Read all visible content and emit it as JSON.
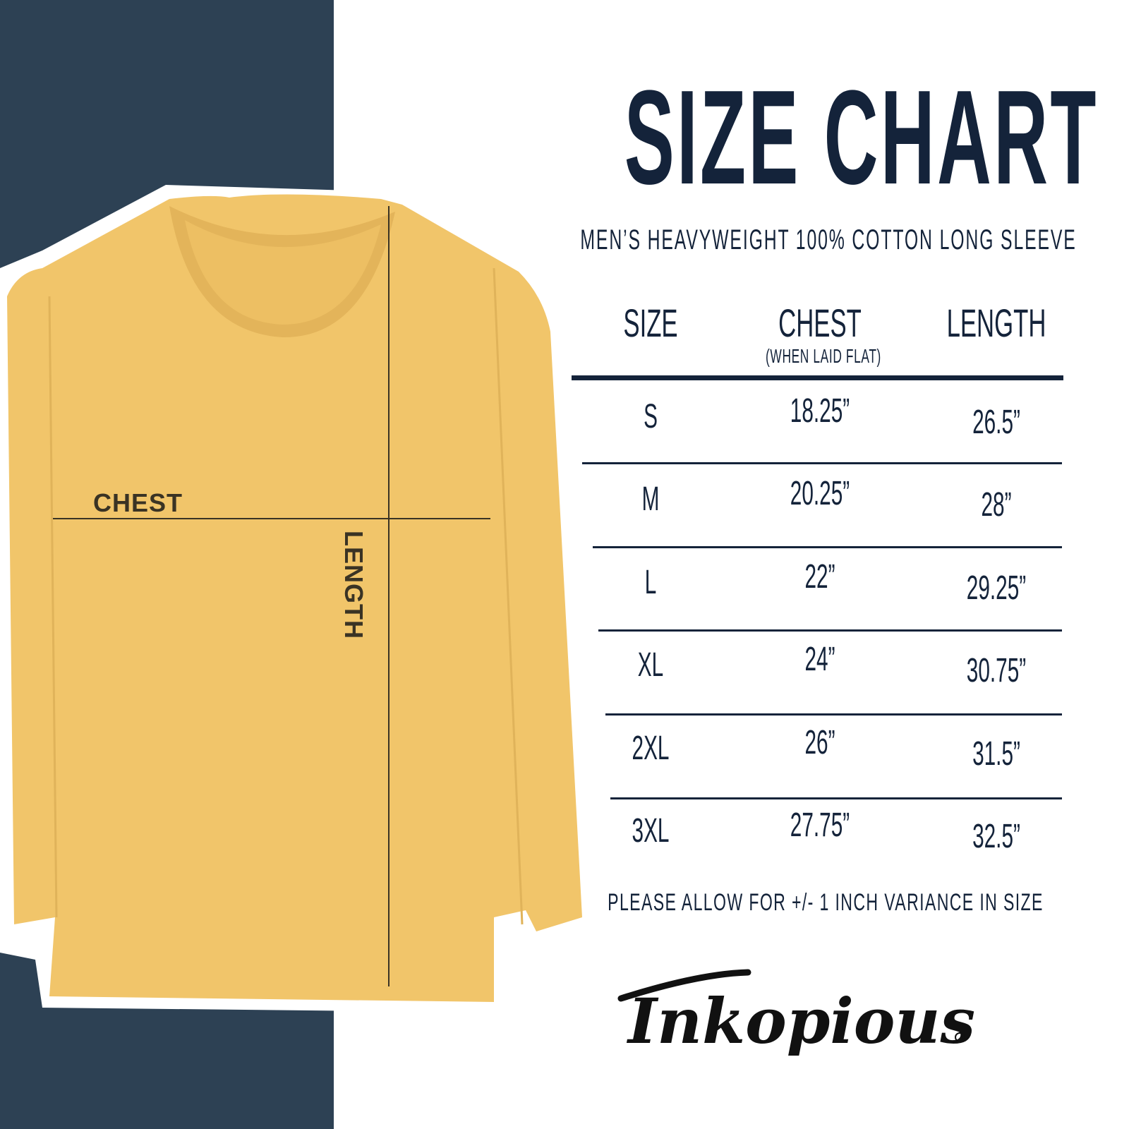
{
  "header": {
    "title": "SIZE CHART",
    "subtitle": "MEN’S HEAVYWEIGHT 100% COTTON LONG SLEEVE"
  },
  "garment": {
    "chest_label": "CHEST",
    "length_label": "LENGTH",
    "shirt_color": "#f1c56a",
    "panel_color": "#2d4154"
  },
  "table": {
    "columns": [
      {
        "label": "SIZE"
      },
      {
        "label": "CHEST",
        "sublabel": "(WHEN LAID FLAT)"
      },
      {
        "label": "LENGTH"
      }
    ],
    "rows": [
      {
        "size": "S",
        "chest": "18.25”",
        "length": "26.5”"
      },
      {
        "size": "M",
        "chest": "20.25”",
        "length": "28”"
      },
      {
        "size": "L",
        "chest": "22”",
        "length": "29.25”"
      },
      {
        "size": "XL",
        "chest": "24”",
        "length": "30.75”"
      },
      {
        "size": "2XL",
        "chest": "26”",
        "length": "31.5”"
      },
      {
        "size": "3XL",
        "chest": "27.75”",
        "length": "32.5”"
      }
    ]
  },
  "footer": {
    "note": "PLEASE ALLOW FOR +/- 1 INCH VARIANCE IN SIZE",
    "brand": "Inkopious"
  },
  "colors": {
    "text": "#14233a"
  }
}
